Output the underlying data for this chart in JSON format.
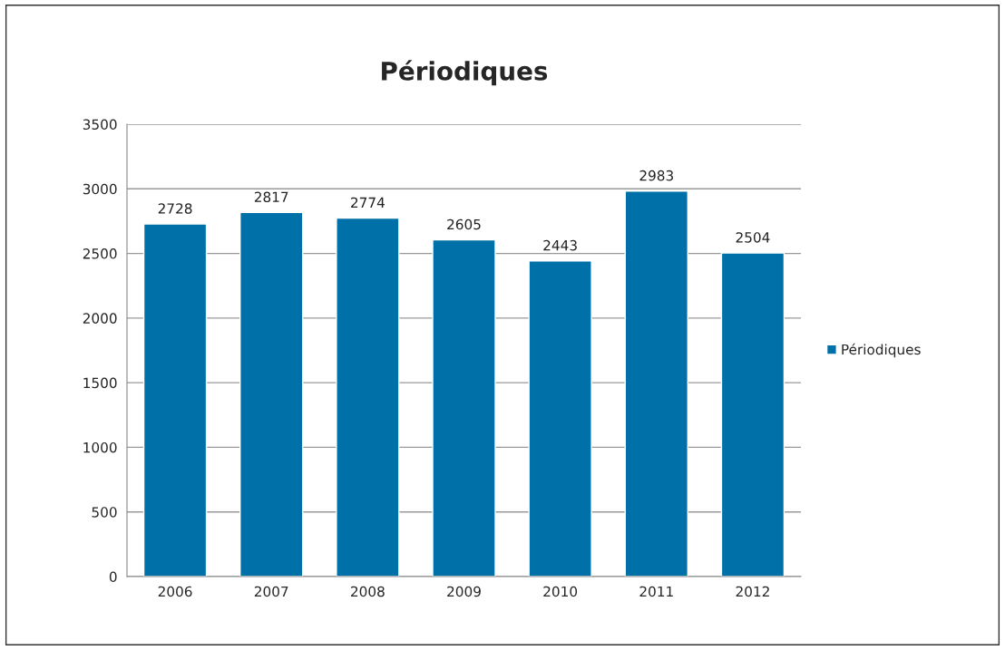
{
  "chart_data": {
    "type": "bar",
    "title": "Périodiques",
    "categories": [
      "2006",
      "2007",
      "2008",
      "2009",
      "2010",
      "2011",
      "2012"
    ],
    "series": [
      {
        "name": "Périodiques",
        "color": "#0070a8",
        "values": [
          2728,
          2817,
          2774,
          2605,
          2443,
          2983,
          2504
        ]
      }
    ],
    "ylim": [
      0,
      3500
    ],
    "yticks": [
      0,
      500,
      1000,
      1500,
      2000,
      2500,
      3000,
      3500
    ],
    "grid": "y",
    "legend": "right",
    "data_labels": true
  }
}
